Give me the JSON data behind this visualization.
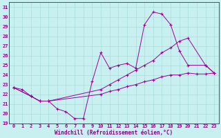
{
  "xlabel": "Windchill (Refroidissement éolien,°C)",
  "bg_color": "#c8f0f0",
  "line_color": "#990099",
  "ylim": [
    19,
    31.5
  ],
  "xlim": [
    -0.5,
    23.5
  ],
  "yticks": [
    19,
    20,
    21,
    22,
    23,
    24,
    25,
    26,
    27,
    28,
    29,
    30,
    31
  ],
  "xticks": [
    0,
    1,
    2,
    3,
    4,
    5,
    6,
    7,
    8,
    9,
    10,
    11,
    12,
    13,
    14,
    15,
    16,
    17,
    18,
    19,
    20,
    21,
    22,
    23
  ],
  "line1_x": [
    0,
    1,
    2,
    3,
    4,
    5,
    6,
    7,
    8,
    9,
    10,
    11,
    12,
    13,
    14,
    15,
    16,
    17,
    18,
    19,
    20,
    22,
    23
  ],
  "line1_y": [
    22.7,
    22.5,
    21.8,
    21.3,
    21.3,
    20.5,
    20.2,
    19.5,
    19.5,
    23.3,
    26.3,
    24.7,
    25.0,
    25.2,
    24.7,
    29.2,
    30.5,
    30.3,
    29.2,
    26.5,
    25.0,
    25.0,
    24.2
  ],
  "line2_x": [
    0,
    2,
    3,
    4,
    10,
    11,
    12,
    13,
    14,
    15,
    16,
    17,
    18,
    19,
    20,
    22,
    23
  ],
  "line2_y": [
    22.7,
    21.8,
    21.3,
    21.3,
    22.5,
    23.0,
    23.5,
    24.0,
    24.5,
    25.0,
    25.5,
    26.3,
    26.8,
    27.5,
    27.8,
    25.0,
    24.2
  ],
  "line3_x": [
    0,
    2,
    3,
    4,
    10,
    11,
    12,
    13,
    14,
    15,
    16,
    17,
    18,
    19,
    20,
    21,
    22,
    23
  ],
  "line3_y": [
    22.7,
    21.8,
    21.3,
    21.3,
    22.0,
    22.3,
    22.5,
    22.8,
    23.0,
    23.3,
    23.5,
    23.8,
    24.0,
    24.0,
    24.2,
    24.1,
    24.1,
    24.2
  ],
  "grid_color": "#a0d8d8",
  "font_color": "#880088",
  "tick_fontsize": 5,
  "xlabel_fontsize": 5.5
}
